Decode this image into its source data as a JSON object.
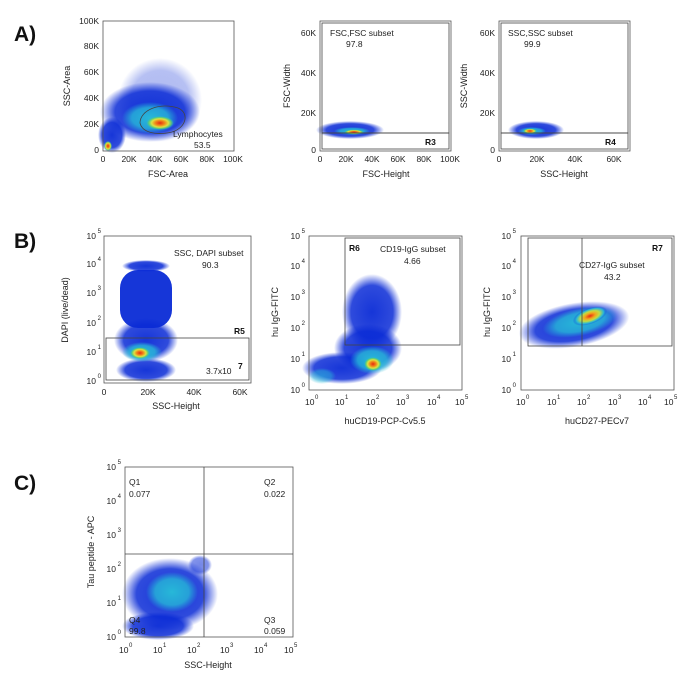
{
  "colors": {
    "density_low": "#0a2bd6",
    "density_mid": "#27b8d8",
    "density_high": "#e6e63a",
    "density_peak": "#e62a12",
    "frame": "#555555",
    "text": "#222222"
  },
  "panel_letters": [
    "A)",
    "B)",
    "C)"
  ],
  "chart_data": [
    {
      "type": "scatter",
      "panel": "A",
      "xlabel": "FSC-Area",
      "ylabel": "SSC-Area",
      "xticks": [
        "0",
        "20K",
        "40K",
        "60K",
        "80K",
        "100K"
      ],
      "yticks": [
        "0",
        "20K",
        "40K",
        "60K",
        "80K",
        "100K"
      ],
      "xlim": [
        0,
        100000
      ],
      "ylim": [
        0,
        100000
      ],
      "gates": [
        {
          "name": "Lymphocytes",
          "value": "53.5"
        }
      ],
      "populations": [
        {
          "x": 40000,
          "y": 20000,
          "level": "peak"
        },
        {
          "x": 30000,
          "y": 25000,
          "level": "high"
        }
      ]
    },
    {
      "type": "scatter",
      "panel": "A",
      "xlabel": "FSC-Height",
      "ylabel": "FSC-Width",
      "xticks": [
        "0",
        "20K",
        "40K",
        "60K",
        "80K",
        "100K"
      ],
      "yticks": [
        "0",
        "20K",
        "40K",
        "60K"
      ],
      "xlim": [
        0,
        100000
      ],
      "ylim": [
        0,
        65000
      ],
      "gates": [
        {
          "name": "FSC,FSC subset",
          "value": "97.8",
          "region": "R3"
        }
      ]
    },
    {
      "type": "scatter",
      "panel": "A",
      "xlabel": "SSC-Height",
      "ylabel": "SSC-Width",
      "xticks": [
        "0",
        "20K",
        "40K",
        "60K"
      ],
      "yticks": [
        "0",
        "20K",
        "40K",
        "60K"
      ],
      "xlim": [
        0,
        65000
      ],
      "ylim": [
        0,
        65000
      ],
      "gates": [
        {
          "name": "SSC,SSC subset",
          "value": "99.9",
          "region": "R4"
        }
      ]
    },
    {
      "type": "scatter",
      "panel": "B",
      "xlabel": "SSC-Height",
      "ylabel": "DAPI (live/dead)",
      "xticks": [
        "0",
        "20K",
        "40K",
        "60K"
      ],
      "ytick_exponents": [
        "0",
        "1",
        "2",
        "3",
        "4",
        "5"
      ],
      "xlim": [
        0,
        65000
      ],
      "ylim_log10": [
        0,
        5
      ],
      "gates": [
        {
          "name": "SSC, DAPI subset",
          "value": "90.3",
          "region": "R5"
        }
      ],
      "count_label": {
        "base": "3.7x10",
        "exponent": "7"
      }
    },
    {
      "type": "scatter",
      "panel": "B",
      "xlabel": "huCD19-PCP-Cv5.5",
      "ylabel": "hu IgG-FITC",
      "xtick_exponents": [
        "0",
        "1",
        "2",
        "3",
        "4",
        "5"
      ],
      "ytick_exponents": [
        "0",
        "1",
        "2",
        "3",
        "4",
        "5"
      ],
      "xlim_log10": [
        0,
        5
      ],
      "ylim_log10": [
        0,
        5
      ],
      "gates": [
        {
          "name": "CD19-IgG subset",
          "value": "4.66",
          "region": "R6"
        }
      ]
    },
    {
      "type": "scatter",
      "panel": "B",
      "xlabel": "huCD27-PECv7",
      "ylabel": "hu IgG-FITC",
      "xtick_exponents": [
        "0",
        "1",
        "2",
        "3",
        "4",
        "5"
      ],
      "ytick_exponents": [
        "0",
        "1",
        "2",
        "3",
        "4",
        "5"
      ],
      "xlim_log10": [
        0,
        5
      ],
      "ylim_log10": [
        0,
        5
      ],
      "gates": [
        {
          "name": "CD27-IgG subset",
          "value": "43.2",
          "region": "R7"
        }
      ]
    },
    {
      "type": "scatter",
      "panel": "C",
      "xlabel": "SSC-Height",
      "ylabel": "Tau peptide - APC",
      "xtick_exponents": [
        "0",
        "1",
        "2",
        "3",
        "4",
        "5"
      ],
      "ytick_exponents": [
        "0",
        "1",
        "2",
        "3",
        "4",
        "5"
      ],
      "xlim_log10": [
        0,
        5
      ],
      "ylim_log10": [
        0,
        5
      ],
      "quadrants": [
        {
          "name": "Q1",
          "value": "0.077"
        },
        {
          "name": "Q2",
          "value": "0.022"
        },
        {
          "name": "Q3",
          "value": "0.059"
        },
        {
          "name": "Q4",
          "value": "99.8"
        }
      ]
    }
  ]
}
